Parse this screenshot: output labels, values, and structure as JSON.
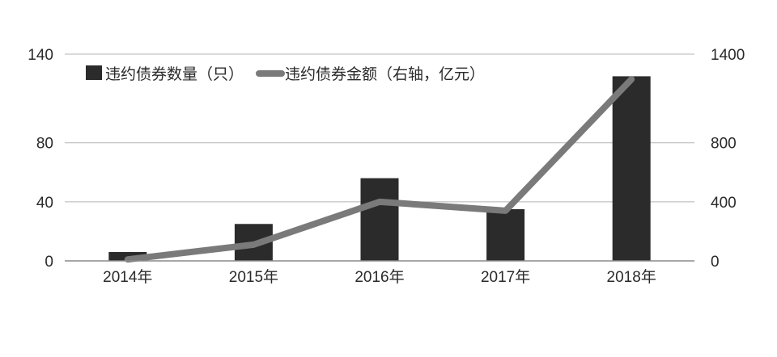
{
  "chart_data": {
    "type": "bar",
    "categories": [
      "2014年",
      "2015年",
      "2016年",
      "2017年",
      "2018年"
    ],
    "series": [
      {
        "name": "违约债券数量（只）",
        "type": "bar",
        "axis": "left",
        "values": [
          6,
          25,
          56,
          35,
          125
        ],
        "color": "#2b2b2b"
      },
      {
        "name": "违约债券金额（右轴，亿元）",
        "type": "line",
        "axis": "right",
        "values": [
          10,
          110,
          400,
          340,
          1230
        ],
        "color": "#7a7a7a"
      }
    ],
    "y_left": {
      "ylim": [
        0,
        140
      ],
      "ticks": [
        0,
        40,
        80,
        140
      ]
    },
    "y_right": {
      "ylim": [
        0,
        1400
      ],
      "ticks": [
        0,
        400,
        800,
        1400
      ]
    },
    "grid": true,
    "legend_position": "top-left"
  }
}
